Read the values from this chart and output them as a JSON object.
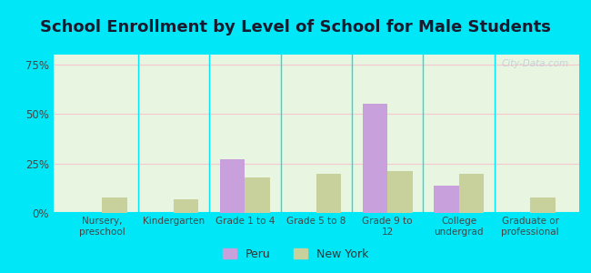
{
  "title": "School Enrollment by Level of School for Male Students",
  "categories": [
    "Nursery,\npreschool",
    "Kindergarten",
    "Grade 1 to 4",
    "Grade 5 to 8",
    "Grade 9 to\n12",
    "College\nundergrad",
    "Graduate or\nprofessional"
  ],
  "peru_values": [
    0,
    0,
    27,
    0,
    55,
    14,
    0
  ],
  "ny_values": [
    8,
    7,
    18,
    20,
    21,
    20,
    8
  ],
  "peru_color": "#c8a0dc",
  "ny_color": "#c8d09c",
  "bg_outer": "#00e8f8",
  "bg_plot": "#e8f5e0",
  "yticks": [
    0,
    25,
    50,
    75
  ],
  "ylim": [
    0,
    80
  ],
  "bar_width": 0.35,
  "title_fontsize": 13,
  "title_color": "#1a1a2e",
  "legend_labels": [
    "Peru",
    "New York"
  ],
  "watermark": "City-Data.com"
}
